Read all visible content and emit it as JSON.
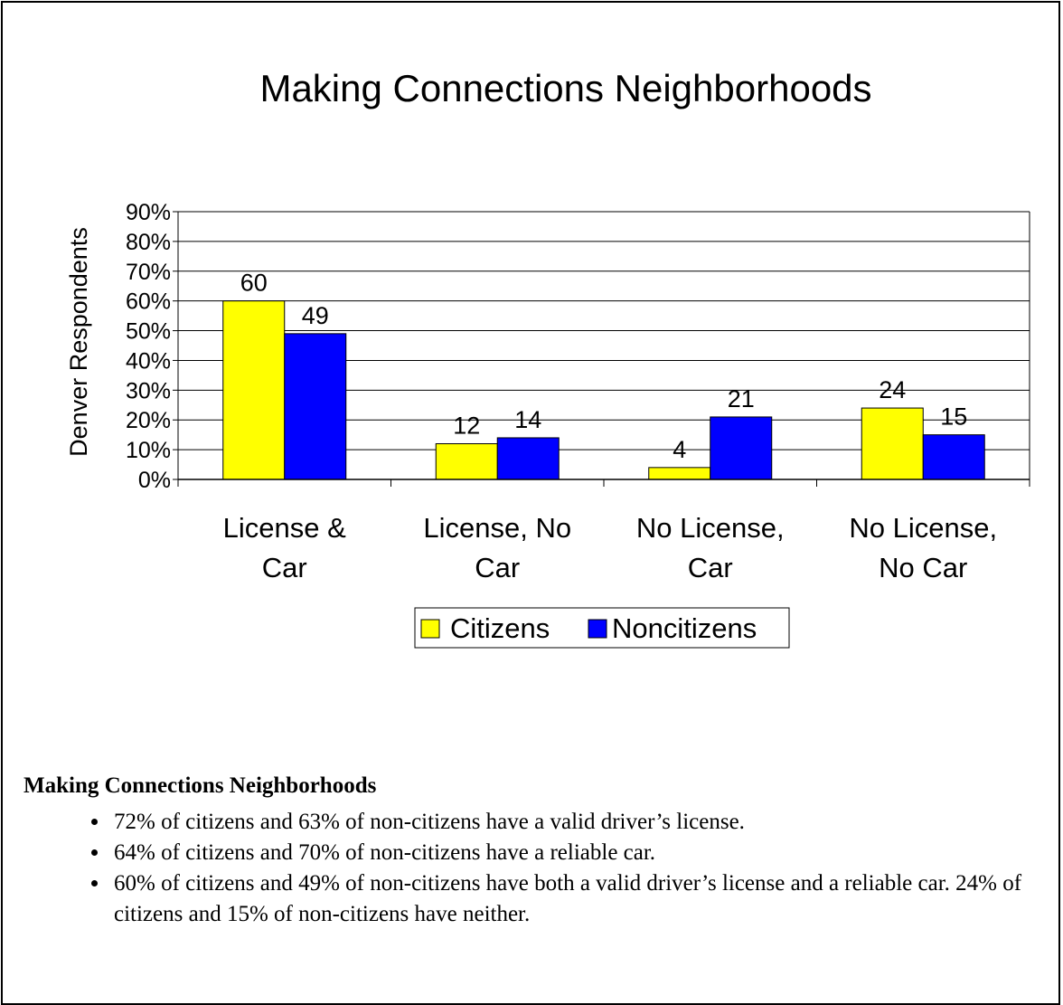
{
  "chart_data": {
    "type": "bar",
    "title": "Making Connections Neighborhoods",
    "ylabel": "Denver Respondents",
    "xlabel": "",
    "ylim": [
      0,
      90
    ],
    "y_tick_labels": [
      "0%",
      "10%",
      "20%",
      "30%",
      "40%",
      "50%",
      "60%",
      "70%",
      "80%",
      "90%"
    ],
    "y_ticks": [
      0,
      10,
      20,
      30,
      40,
      50,
      60,
      70,
      80,
      90
    ],
    "categories": [
      [
        "License &",
        "Car"
      ],
      [
        "License, No",
        "Car"
      ],
      [
        "No License,",
        "Car"
      ],
      [
        "No License,",
        "No Car"
      ]
    ],
    "series": [
      {
        "name": "Citizens",
        "color": "#ffff00",
        "values": [
          60,
          12,
          4,
          24
        ],
        "labels": [
          "60",
          "12",
          "4",
          "24"
        ]
      },
      {
        "name": "Noncitizens",
        "color": "#0000ff",
        "values": [
          49,
          14,
          21,
          15
        ],
        "labels": [
          "49",
          "14",
          "21",
          "15"
        ]
      }
    ],
    "grid": true,
    "legend_placement": "bottom"
  },
  "notes": {
    "title": "Making Connections Neighborhoods",
    "bullets": [
      "72% of citizens and 63% of non-citizens have a valid driver’s license.",
      "64% of citizens and 70% of non-citizens have a reliable car.",
      "60% of citizens and 49% of non-citizens have both a valid driver’s license and a reliable car.  24% of citizens and 15% of non-citizens have neither."
    ]
  }
}
